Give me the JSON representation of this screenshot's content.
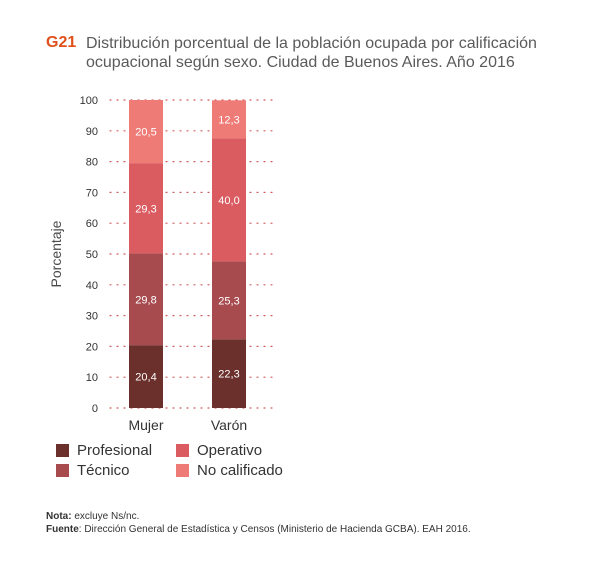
{
  "header": {
    "code": "G21",
    "title": "Distribución porcentual de la población ocupada por calificación ocupacional según sexo. Ciudad de Buenos Aires. Año 2016"
  },
  "chart_data": {
    "type": "bar",
    "stacked": true,
    "title": "Distribución porcentual de la población ocupada por calificación ocupacional según sexo. Ciudad de Buenos Aires. Año 2016",
    "categories": [
      "Mujer",
      "Varón"
    ],
    "series": [
      {
        "name": "Profesional",
        "color": "#6b2f2c",
        "values": [
          20.4,
          22.3
        ],
        "labels": [
          "20,4",
          "22,3"
        ]
      },
      {
        "name": "Técnico",
        "color": "#a84b4f",
        "values": [
          29.8,
          25.3
        ],
        "labels": [
          "29,8",
          "25,3"
        ]
      },
      {
        "name": "Operativo",
        "color": "#da5c61",
        "values": [
          29.3,
          40.0
        ],
        "labels": [
          "29,3",
          "40,0"
        ]
      },
      {
        "name": "No calificado",
        "color": "#ef7b77",
        "values": [
          20.5,
          12.3
        ],
        "labels": [
          "20,5",
          "12,3"
        ]
      }
    ],
    "ylabel": "Porcentaje",
    "xlabel": "",
    "ylim": [
      0,
      100
    ],
    "yticks": [
      "0",
      "10",
      "20",
      "30",
      "40",
      "50",
      "60",
      "70",
      "80",
      "90",
      "100"
    ],
    "grid": "dotted",
    "legend_position": "bottom"
  },
  "notes": {
    "nota_label": "Nota:",
    "nota_text": " excluye Ns/nc.",
    "fuente_label": "Fuente",
    "fuente_text": ": Dirección General de Estadística y Censos (Ministerio de Hacienda GCBA). EAH 2016."
  }
}
